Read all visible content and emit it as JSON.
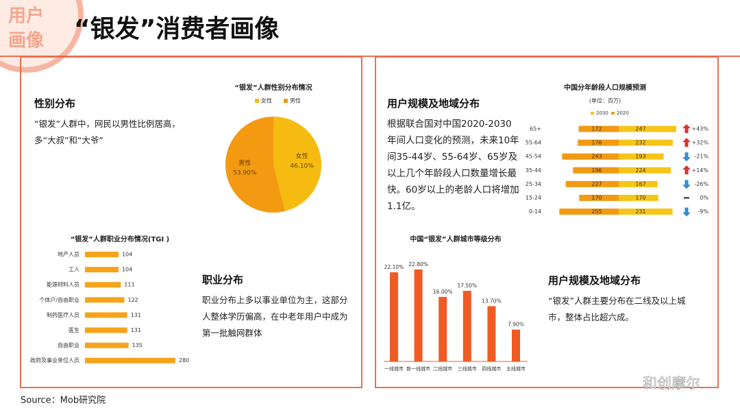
{
  "header": {
    "badge": [
      "用户",
      "画像"
    ],
    "title": "“银发”消费者画像"
  },
  "blocks": [
    {
      "heading": "性别分布",
      "text": "“银发”人群中，网民以男性比例居高，多“大叔”和“大爷”"
    },
    {
      "heading": "职业分布",
      "text": "职业分布上多以事业单位为主，这部分人整体学历偏高，在中老年用户中成为第一批触网群体"
    },
    {
      "heading": "用户规模及地域分布",
      "text": "根据联合国对中国2020-2030年间人口变化的预测，未来10年间35-44岁、55-64岁、65岁及以上几个年龄段人口数量增长最快。60岁以上的老龄人口将增加1.1亿。"
    },
    {
      "heading": "用户规模及地域分布",
      "text": "“银发”人群主要分布在二线及以上城市，整体占比超六成。"
    }
  ],
  "chart_data": [
    {
      "type": "pie",
      "title": "“银发”人群性别分布情况",
      "categories": [
        "女性",
        "男性"
      ],
      "values": [
        46.1,
        53.9
      ],
      "value_labels": [
        "46.10%",
        "53.90%"
      ],
      "colors": [
        "#f5bb10",
        "#f39a12"
      ]
    },
    {
      "type": "bar",
      "orientation": "horizontal",
      "title": "“银发”人群职业分布情况(TGI )",
      "categories": [
        "地产人员",
        "工人",
        "能源材料人员",
        "个体户/自由职业",
        "制药医疗人员",
        "医生",
        "自由职业",
        "政府及事业单位人员"
      ],
      "values": [
        104,
        104,
        111,
        122,
        131,
        131,
        135,
        280
      ],
      "color": "#f5a31a"
    },
    {
      "type": "butterfly",
      "title": "中国分年龄段人口规模预测",
      "subtitle": "(单位：百万)",
      "categories": [
        "65+",
        "55-64",
        "45-54",
        "35-44",
        "25-34",
        "15-24",
        "0-14"
      ],
      "series": [
        {
          "name": "2030",
          "color": "#f5c518",
          "values": [
            247,
            232,
            193,
            224,
            167,
            170,
            231
          ]
        },
        {
          "name": "2020",
          "color": "#f39a12",
          "values": [
            172,
            176,
            243,
            196,
            227,
            170,
            255
          ]
        }
      ],
      "change": {
        "values": [
          43,
          32,
          -21,
          14,
          -26,
          0,
          -9
        ],
        "value_labels": [
          "+43%",
          "+32%",
          "-21%",
          "+14%",
          "-26%",
          "0%",
          "-9%"
        ],
        "up_color": "#e0322f",
        "down_color": "#2f8fd8"
      }
    },
    {
      "type": "bar",
      "orientation": "vertical",
      "title": "中国“银发”人群城市等级分布",
      "categories": [
        "一线城市",
        "新一线城市",
        "二线城市",
        "三线城市",
        "四线城市",
        "五线城市"
      ],
      "values": [
        22.1,
        22.8,
        16.0,
        17.5,
        13.7,
        7.9
      ],
      "value_labels": [
        "22.10%",
        "22.80%",
        "16.00%",
        "17.50%",
        "13.70%",
        "7.90%"
      ],
      "color": "#f05a23"
    }
  ],
  "footer": {
    "source": "Source：Mob研究院",
    "watermark": "和创摩尔"
  }
}
